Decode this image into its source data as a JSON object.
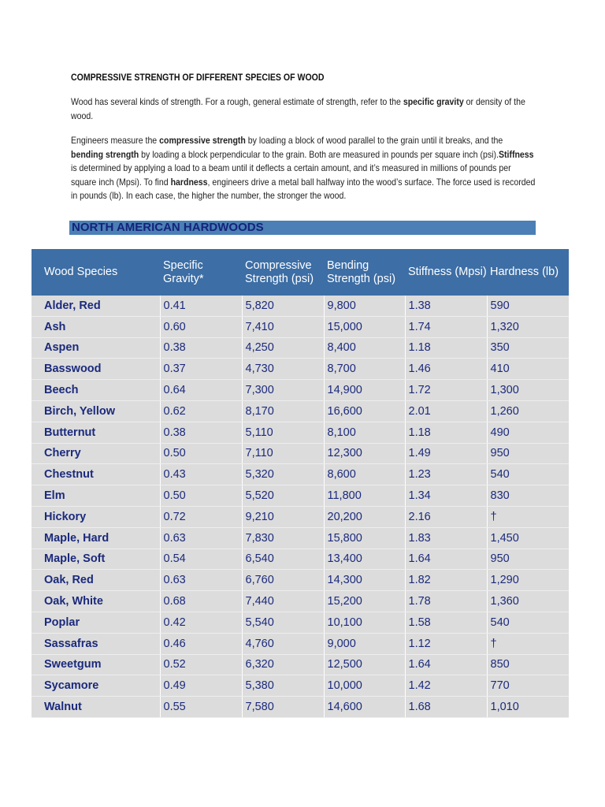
{
  "title": "COMPRESSIVE STRENGTH OF DIFFERENT SPECIES OF WOOD",
  "paragraphs": [
    [
      {
        "text": "Wood has several kinds of strength. For a rough, general estimate of strength, refer to the ",
        "bold": false
      },
      {
        "text": "specific gravity",
        "bold": true
      },
      {
        "text": " or density of the wood.",
        "bold": false
      }
    ],
    [
      {
        "text": "Engineers measure the ",
        "bold": false
      },
      {
        "text": "compressive strength",
        "bold": true
      },
      {
        "text": " by loading a block of wood parallel to the grain until it breaks, and the ",
        "bold": false
      },
      {
        "text": "bending strength",
        "bold": true
      },
      {
        "text": " by loading a block perpendicular to the grain. Both are measured in pounds per square inch (psi).",
        "bold": false
      },
      {
        "text": "Stiffness",
        "bold": true
      },
      {
        "text": " is determined by applying a load to a beam until it deflects a certain amount, and it’s measured in millions of pounds per square inch (Mpsi). To find ",
        "bold": false
      },
      {
        "text": "hardness",
        "bold": true
      },
      {
        "text": ", engineers drive a metal ball halfway into the wood’s surface. The force used is recorded in pounds (lb). In each case, the higher the number, the stronger the wood.",
        "bold": false
      }
    ]
  ],
  "section": "NORTH AMERICAN HARDWOODS",
  "table": {
    "header": [
      "Wood Species",
      "Specific Gravity*",
      "Compressive Strength (psi)",
      "Bending Strength (psi)",
      "Stiffness (Mpsi)",
      "Hardness (lb)"
    ],
    "rows": [
      [
        "Alder, Red",
        "0.41",
        "5,820",
        "9,800",
        "1.38",
        "590"
      ],
      [
        "Ash",
        "0.60",
        "7,410",
        "15,000",
        "1.74",
        "1,320"
      ],
      [
        "Aspen",
        "0.38",
        "4,250",
        "8,400",
        "1.18",
        "350"
      ],
      [
        "Basswood",
        "0.37",
        "4,730",
        "8,700",
        "1.46",
        "410"
      ],
      [
        "Beech",
        "0.64",
        "7,300",
        "14,900",
        "1.72",
        "1,300"
      ],
      [
        "Birch, Yellow",
        "0.62",
        "8,170",
        "16,600",
        "2.01",
        "1,260"
      ],
      [
        "Butternut",
        "0.38",
        "5,110",
        "8,100",
        "1.18",
        "490"
      ],
      [
        "Cherry",
        "0.50",
        "7,110",
        "12,300",
        "1.49",
        "950"
      ],
      [
        "Chestnut",
        "0.43",
        "5,320",
        "8,600",
        "1.23",
        "540"
      ],
      [
        "Elm",
        "0.50",
        "5,520",
        "11,800",
        "1.34",
        "830"
      ],
      [
        "Hickory",
        "0.72",
        "9,210",
        "20,200",
        "2.16",
        "†"
      ],
      [
        "Maple, Hard",
        "0.63",
        "7,830",
        "15,800",
        "1.83",
        "1,450"
      ],
      [
        "Maple, Soft",
        "0.54",
        "6,540",
        "13,400",
        "1.64",
        "950"
      ],
      [
        "Oak, Red",
        "0.63",
        "6,760",
        "14,300",
        "1.82",
        "1,290"
      ],
      [
        "Oak, White",
        "0.68",
        "7,440",
        "15,200",
        "1.78",
        "1,360"
      ],
      [
        "Poplar",
        "0.42",
        "5,540",
        "10,100",
        "1.58",
        "540"
      ],
      [
        "Sassafras",
        "0.46",
        "4,760",
        "9,000",
        "1.12",
        "†"
      ],
      [
        "Sweetgum",
        "0.52",
        "6,320",
        "12,500",
        "1.64",
        "850"
      ],
      [
        "Sycamore",
        "0.49",
        "5,380",
        "10,000",
        "1.42",
        "770"
      ],
      [
        "Walnut",
        "0.55",
        "7,580",
        "14,600",
        "1.68",
        "1,010"
      ]
    ]
  }
}
